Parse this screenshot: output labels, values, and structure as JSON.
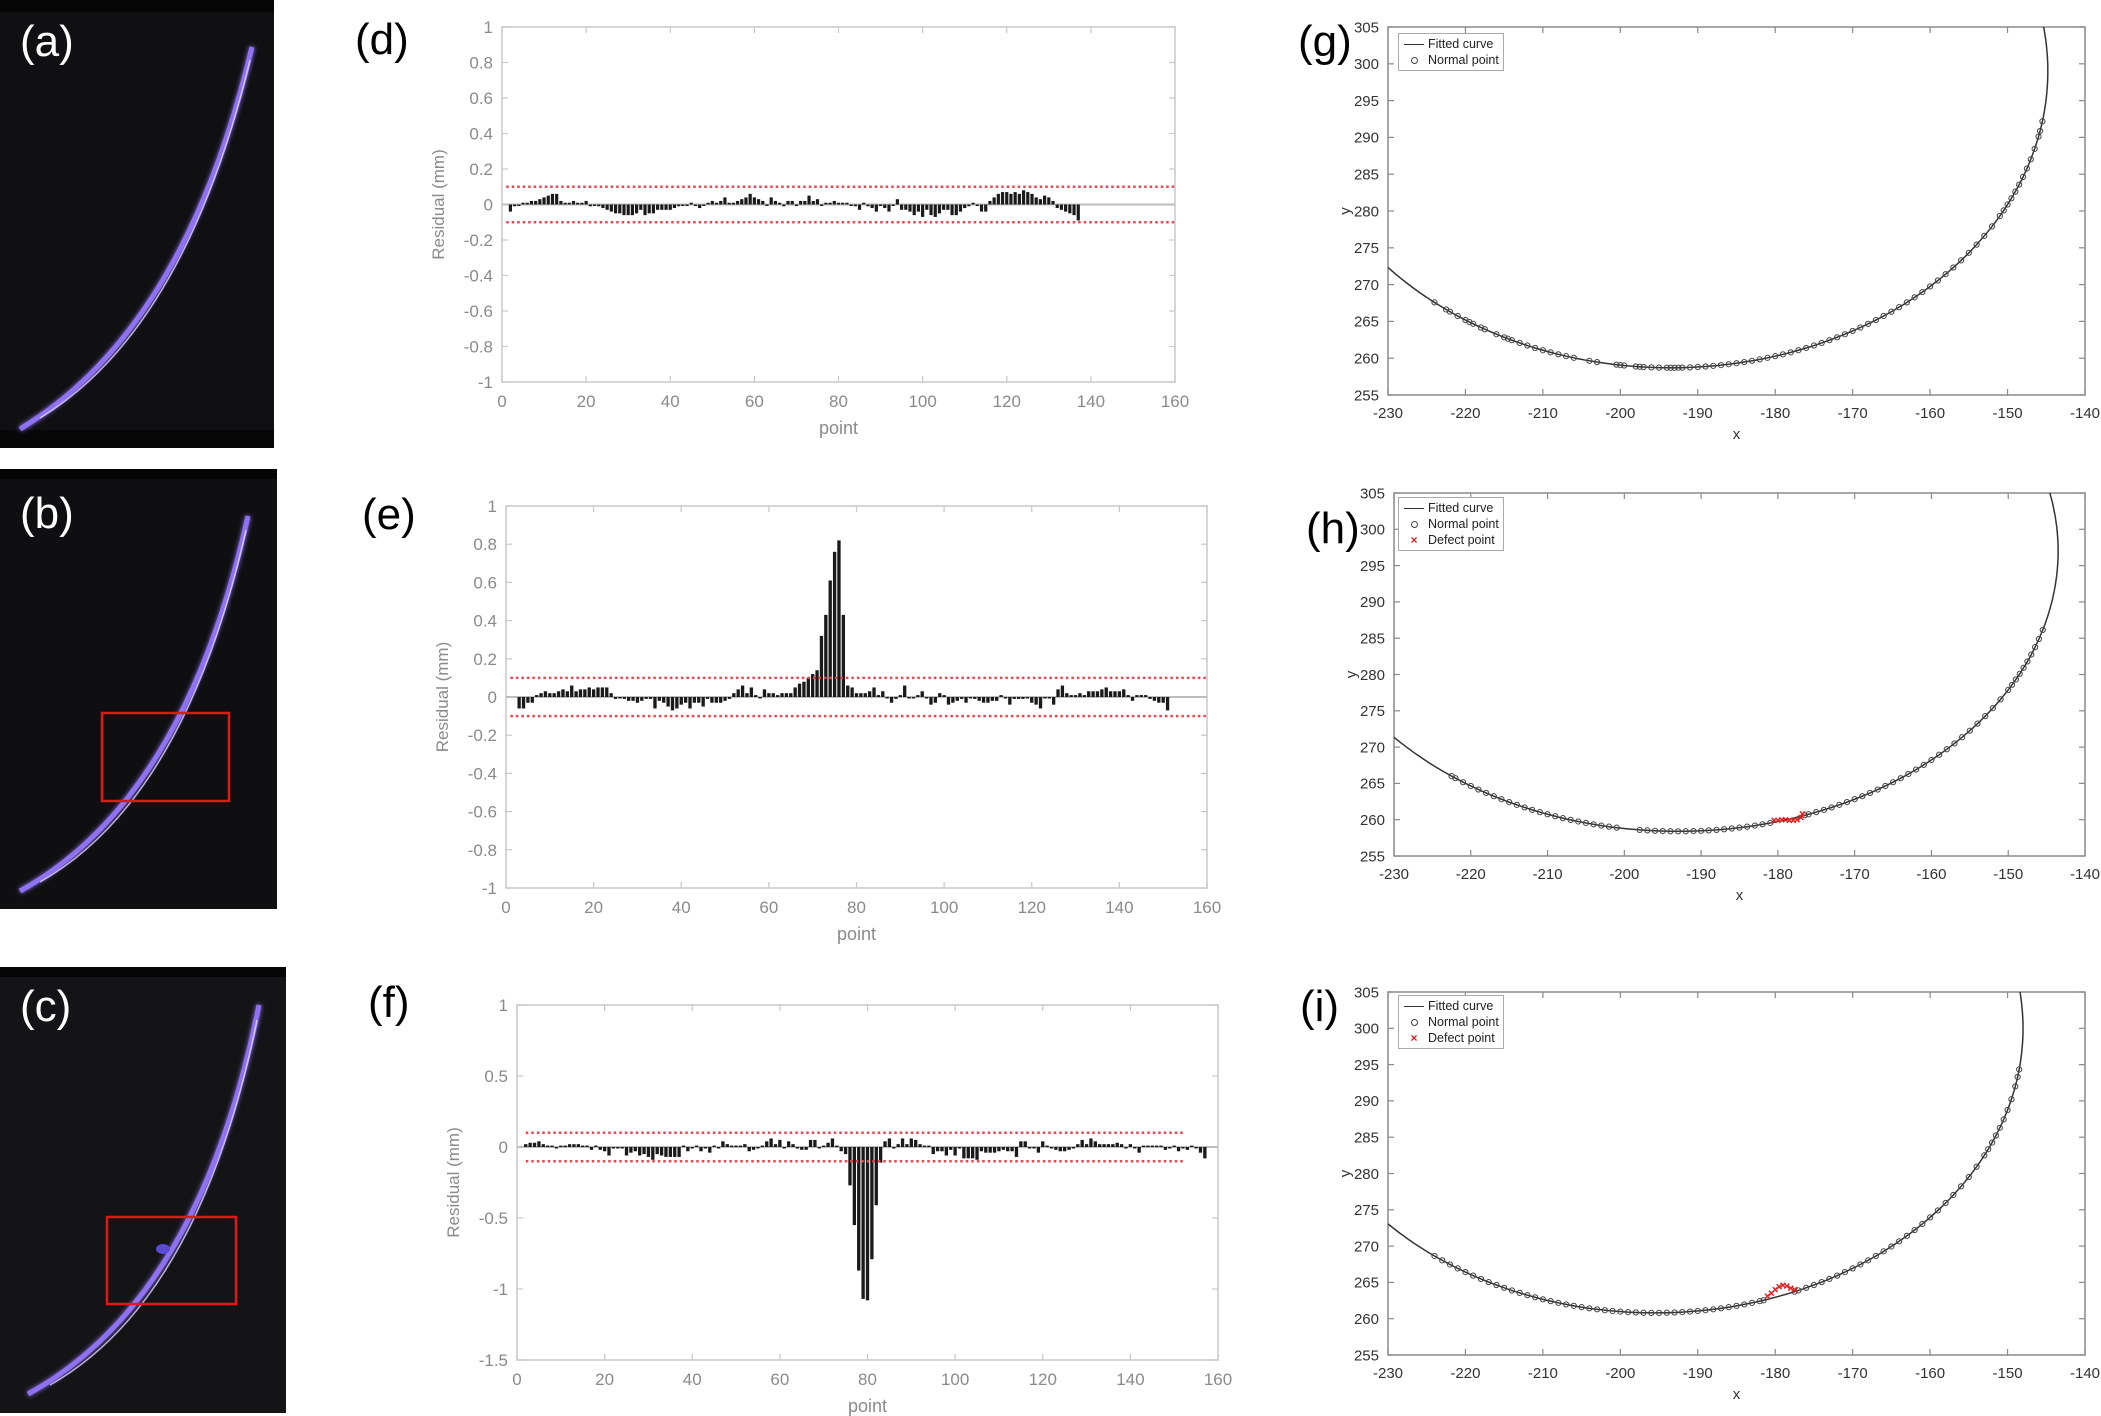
{
  "panels": {
    "a": {
      "label": "(a)"
    },
    "b": {
      "label": "(b)"
    },
    "c": {
      "label": "(c)"
    }
  },
  "colors": {
    "laser": "#9b7bff",
    "highlight_box": "#e01818",
    "threshold": "#e8474f",
    "defect": "#e02020"
  },
  "chart_data": [
    {
      "panel_label": "(d)",
      "type": "bar",
      "xlabel": "point",
      "ylabel": "Residual (mm)",
      "xlim": [
        0,
        160
      ],
      "ylim": [
        -1,
        1
      ],
      "xticks": [
        0,
        20,
        40,
        60,
        80,
        100,
        120,
        140,
        160
      ],
      "yticks": [
        1,
        0.8,
        0.6,
        0.4,
        0.2,
        0,
        -0.2,
        -0.4,
        -0.6,
        -0.8,
        -1
      ],
      "threshold": [
        0.1,
        -0.1
      ],
      "threshold_xrange": [
        1,
        160
      ],
      "x_start": 2,
      "values": [
        -0.04,
        -0.01,
        0.0,
        0.01,
        0.01,
        0.02,
        0.02,
        0.03,
        0.04,
        0.05,
        0.06,
        0.06,
        0.02,
        0.01,
        0.01,
        0.02,
        0.01,
        0.01,
        0.02,
        -0.01,
        0.0,
        -0.01,
        -0.02,
        -0.03,
        -0.04,
        -0.05,
        -0.05,
        -0.06,
        -0.06,
        -0.06,
        -0.05,
        -0.03,
        -0.06,
        -0.05,
        -0.05,
        -0.03,
        -0.03,
        -0.03,
        -0.03,
        -0.02,
        -0.01,
        0.0,
        0.0,
        0.01,
        0.0,
        -0.02,
        0.0,
        0.01,
        0.02,
        0.01,
        0.02,
        0.04,
        0.01,
        0.01,
        0.02,
        0.03,
        0.04,
        0.06,
        0.04,
        0.03,
        0.02,
        0.0,
        0.04,
        0.02,
        0.01,
        -0.01,
        0.02,
        0.02,
        0.0,
        0.02,
        0.02,
        0.05,
        0.02,
        0.03,
        0.0,
        0.01,
        0.01,
        0.02,
        0.01,
        0.01,
        0.01,
        0.0,
        -0.01,
        -0.03,
        0.01,
        -0.01,
        -0.02,
        -0.04,
        0.0,
        -0.02,
        -0.04,
        0.0,
        0.03,
        -0.03,
        -0.03,
        -0.04,
        -0.06,
        -0.04,
        -0.07,
        -0.03,
        -0.06,
        -0.07,
        -0.05,
        -0.03,
        -0.03,
        -0.06,
        -0.06,
        -0.04,
        -0.02,
        -0.01,
        0.01,
        0.0,
        -0.04,
        -0.04,
        0.02,
        0.04,
        0.06,
        0.07,
        0.07,
        0.06,
        0.07,
        0.06,
        0.08,
        0.07,
        0.06,
        0.04,
        0.03,
        0.05,
        0.04,
        0.02,
        -0.02,
        -0.03,
        -0.04,
        -0.05,
        -0.06,
        -0.09
      ]
    },
    {
      "panel_label": "(e)",
      "type": "bar",
      "xlabel": "point",
      "ylabel": "Residual (mm)",
      "xlim": [
        0,
        160
      ],
      "ylim": [
        -1,
        1
      ],
      "xticks": [
        0,
        20,
        40,
        60,
        80,
        100,
        120,
        140,
        160
      ],
      "yticks": [
        1,
        0.8,
        0.6,
        0.4,
        0.2,
        0,
        -0.2,
        -0.4,
        -0.6,
        -0.8,
        -1
      ],
      "threshold": [
        0.1,
        -0.1
      ],
      "threshold_xrange": [
        1,
        160
      ],
      "x_start": 3,
      "values": [
        -0.06,
        -0.06,
        -0.03,
        -0.03,
        0.01,
        0.02,
        0.03,
        0.02,
        0.02,
        0.03,
        0.04,
        0.03,
        0.06,
        0.03,
        0.04,
        0.04,
        0.05,
        0.04,
        0.05,
        0.05,
        0.05,
        0.02,
        -0.01,
        0.0,
        -0.01,
        -0.02,
        -0.02,
        -0.03,
        -0.02,
        -0.01,
        -0.01,
        -0.06,
        -0.02,
        -0.03,
        -0.05,
        -0.07,
        -0.06,
        -0.04,
        -0.03,
        -0.06,
        -0.03,
        -0.03,
        -0.05,
        -0.01,
        -0.03,
        -0.03,
        -0.03,
        -0.02,
        -0.01,
        0.02,
        0.04,
        0.06,
        0.02,
        0.05,
        0.01,
        0.0,
        0.04,
        0.02,
        0.02,
        0.01,
        0.02,
        0.02,
        0.02,
        0.05,
        0.07,
        0.08,
        0.1,
        0.12,
        0.14,
        0.32,
        0.43,
        0.61,
        0.76,
        0.82,
        0.43,
        0.06,
        0.05,
        0.02,
        0.02,
        0.02,
        0.03,
        0.05,
        0.01,
        0.03,
        0.0,
        -0.03,
        -0.01,
        0.01,
        0.06,
        0.0,
        0.0,
        0.01,
        0.03,
        0.0,
        -0.04,
        -0.03,
        0.02,
        0.01,
        -0.04,
        -0.03,
        -0.02,
        -0.01,
        -0.03,
        0.0,
        -0.01,
        -0.02,
        -0.03,
        -0.03,
        -0.02,
        -0.02,
        0.01,
        0.0,
        -0.04,
        -0.01,
        -0.01,
        -0.01,
        0.0,
        -0.03,
        -0.04,
        -0.06,
        0.0,
        0.0,
        -0.04,
        0.04,
        0.06,
        0.02,
        0.01,
        0.01,
        0.02,
        0.01,
        0.03,
        0.03,
        0.03,
        0.04,
        0.05,
        0.03,
        0.03,
        0.03,
        0.04,
        0.01,
        -0.02,
        0.01,
        0.01,
        0.01,
        -0.01,
        -0.02,
        -0.03,
        -0.03,
        -0.07
      ]
    },
    {
      "panel_label": "(f)",
      "type": "bar",
      "xlabel": "point",
      "ylabel": "Residual (mm)",
      "xlim": [
        0,
        160
      ],
      "ylim": [
        -1.5,
        1
      ],
      "xticks": [
        0,
        20,
        40,
        60,
        80,
        100,
        120,
        140,
        160
      ],
      "yticks": [
        1,
        0.5,
        0,
        -0.5,
        -1,
        -1.5
      ],
      "threshold": [
        0.1,
        -0.1
      ],
      "threshold_xrange": [
        2,
        152
      ],
      "x_start": 2,
      "values": [
        0.02,
        0.03,
        0.03,
        0.04,
        0.02,
        0.01,
        0.01,
        0.0,
        0.01,
        0.01,
        0.02,
        0.02,
        0.02,
        0.01,
        0.01,
        -0.02,
        0.01,
        -0.02,
        -0.03,
        -0.06,
        0.0,
        0.0,
        0.0,
        -0.06,
        -0.04,
        -0.03,
        -0.06,
        -0.05,
        -0.07,
        -0.09,
        -0.05,
        -0.06,
        -0.07,
        -0.07,
        -0.07,
        -0.07,
        0.01,
        -0.03,
        -0.01,
        0.01,
        -0.03,
        -0.01,
        -0.04,
        0.01,
        -0.01,
        0.04,
        0.02,
        0.01,
        0.01,
        0.01,
        0.02,
        -0.03,
        -0.02,
        0.0,
        0.01,
        0.04,
        0.06,
        0.02,
        0.05,
        0.0,
        0.04,
        0.02,
        0.0,
        -0.02,
        -0.02,
        0.05,
        0.05,
        0.0,
        0.01,
        0.03,
        0.06,
        0.01,
        -0.03,
        -0.05,
        -0.27,
        -0.55,
        -0.87,
        -1.07,
        -1.08,
        -0.79,
        -0.41,
        -0.11,
        0.04,
        0.06,
        0.0,
        0.02,
        0.06,
        0.02,
        0.06,
        0.05,
        0.02,
        0.01,
        0.01,
        -0.05,
        -0.03,
        -0.03,
        -0.06,
        -0.02,
        -0.06,
        0.0,
        -0.08,
        -0.08,
        -0.08,
        -0.09,
        -0.03,
        -0.04,
        -0.04,
        -0.04,
        -0.03,
        -0.02,
        -0.03,
        -0.03,
        -0.07,
        0.04,
        0.04,
        0.0,
        -0.01,
        -0.04,
        0.04,
        0.01,
        -0.01,
        -0.02,
        -0.03,
        -0.03,
        -0.02,
        0.0,
        0.02,
        0.05,
        0.02,
        0.06,
        0.04,
        0.02,
        0.02,
        0.02,
        0.02,
        0.03,
        0.02,
        0.0,
        0.02,
        -0.01,
        -0.04,
        0.01,
        0.01,
        0.01,
        0.01,
        0.01,
        -0.02,
        -0.01,
        0.01,
        -0.03,
        0.0,
        -0.02,
        0.01,
        0.0,
        -0.04,
        -0.08
      ]
    },
    {
      "panel_label": "(g)",
      "type": "scatter",
      "xlabel": "x",
      "ylabel": "y",
      "xlim": [
        -230,
        -140
      ],
      "ylim": [
        255,
        305
      ],
      "xticks": [
        -230,
        -220,
        -210,
        -200,
        -190,
        -180,
        -170,
        -160,
        -150,
        -140
      ],
      "yticks": [
        305,
        300,
        295,
        290,
        285,
        280,
        275,
        270,
        265,
        260,
        255
      ],
      "legend": [
        "Fitted curve",
        "Normal point"
      ],
      "legend_position": "top-left",
      "fitted_curve": {
        "shape": "ellipse",
        "center": [
          -193.5,
          299
        ],
        "semi_axes": [
          48.7,
          40.3
        ]
      },
      "normal_points_x": [
        -224,
        -222.5,
        -222,
        -221,
        -220,
        -219.5,
        -219,
        -218,
        -217.5,
        -216,
        -215,
        -214.5,
        -214,
        -213,
        -212,
        -211,
        -210,
        -209,
        -208,
        -207,
        -206,
        -204,
        -203,
        -200.5,
        -200,
        -199.5,
        -198,
        -197.5,
        -197,
        -196,
        -195,
        -194,
        -193.5,
        -193,
        -192.5,
        -192,
        -191,
        -190,
        -189,
        -188,
        -187,
        -186,
        -185,
        -184,
        -183,
        -182,
        -181,
        -180,
        -179,
        -178,
        -177,
        -176,
        -175,
        -174,
        -173,
        -172,
        -171,
        -170,
        -169,
        -168,
        -167,
        -166,
        -165,
        -164,
        -163,
        -162,
        -161,
        -160,
        -159,
        -158,
        -157,
        -156,
        -155,
        -154,
        -153,
        -152,
        -151,
        -150.5,
        -150,
        -149.5,
        -149,
        -148.5,
        -148,
        -147.5,
        -147,
        -146.5,
        -146,
        -145.8,
        -145.5
      ],
      "defect_points": []
    },
    {
      "panel_label": "(h)",
      "type": "scatter",
      "xlabel": "x",
      "ylabel": "y",
      "xlim": [
        -230,
        -140
      ],
      "ylim": [
        255,
        305
      ],
      "xticks": [
        -230,
        -220,
        -210,
        -200,
        -190,
        -180,
        -170,
        -160,
        -150,
        -140
      ],
      "yticks": [
        305,
        300,
        295,
        290,
        285,
        280,
        275,
        270,
        265,
        260,
        255
      ],
      "legend": [
        "Fitted curve",
        "Normal point",
        "Defect point"
      ],
      "legend_position": "top-left",
      "fitted_curve": {
        "shape": "ellipse",
        "center": [
          -193,
          297
        ],
        "semi_axes": [
          49.5,
          38.6
        ]
      },
      "normal_points_x": [
        -222.5,
        -222,
        -221,
        -220,
        -219,
        -218,
        -217,
        -216,
        -215,
        -214,
        -213,
        -212,
        -211,
        -210,
        -209,
        -208,
        -207,
        -206,
        -205,
        -204,
        -203,
        -202,
        -201,
        -198,
        -197,
        -196,
        -195,
        -194,
        -193,
        -192,
        -191,
        -190,
        -189,
        -188,
        -187,
        -186,
        -185,
        -184,
        -183,
        -182,
        -181,
        -176.5,
        -176,
        -175,
        -174,
        -173,
        -172,
        -171,
        -170,
        -169,
        -168,
        -167,
        -166,
        -165,
        -164,
        -163,
        -162,
        -161,
        -160,
        -159,
        -158,
        -157,
        -156,
        -155,
        -154,
        -153,
        -152,
        -151,
        -150,
        -149.5,
        -149,
        -148.5,
        -148,
        -147.5,
        -147,
        -146.5,
        -146,
        -145.5
      ],
      "defect_points": [
        [
          -180.5,
          259.9
        ],
        [
          -180,
          259.9
        ],
        [
          -179.5,
          260
        ],
        [
          -179,
          260
        ],
        [
          -178.5,
          259.9
        ],
        [
          -178,
          259.9
        ],
        [
          -177.5,
          260
        ],
        [
          -177,
          260.3
        ],
        [
          -176.8,
          260.8
        ]
      ]
    },
    {
      "panel_label": "(i)",
      "type": "scatter",
      "xlabel": "x",
      "ylabel": "y",
      "xlim": [
        -230,
        -140
      ],
      "ylim": [
        255,
        305
      ],
      "xticks": [
        -230,
        -220,
        -210,
        -200,
        -190,
        -180,
        -170,
        -160,
        -150,
        -140
      ],
      "yticks": [
        305,
        300,
        295,
        290,
        285,
        280,
        275,
        270,
        265,
        260,
        255
      ],
      "legend": [
        "Fitted curve",
        "Normal point",
        "Defect point"
      ],
      "legend_position": "top-left",
      "fitted_curve": {
        "shape": "ellipse",
        "center": [
          -195.5,
          300
        ],
        "semi_axes": [
          47.5,
          39.2
        ]
      },
      "normal_points_x": [
        -224,
        -223,
        -222,
        -221,
        -220,
        -219,
        -218,
        -217,
        -216,
        -215,
        -214,
        -213,
        -212,
        -211,
        -210,
        -209,
        -208,
        -207,
        -206,
        -205,
        -204,
        -203,
        -202,
        -201,
        -200,
        -199,
        -198,
        -197,
        -196,
        -195,
        -194,
        -193,
        -192,
        -191,
        -190,
        -189,
        -188,
        -187,
        -186,
        -185,
        -184,
        -183,
        -182,
        -181.5,
        -177.5,
        -177,
        -176,
        -175,
        -174,
        -173,
        -172,
        -171,
        -170,
        -169,
        -168,
        -167,
        -166,
        -165,
        -164,
        -163,
        -162,
        -161,
        -160,
        -159,
        -158,
        -157,
        -156,
        -155,
        -154,
        -153,
        -152.5,
        -152,
        -151.5,
        -151,
        -150.5,
        -150,
        -149.5,
        -149,
        -148.7,
        -148.5
      ],
      "defect_points": [
        [
          -181,
          263.1
        ],
        [
          -180.5,
          263.5
        ],
        [
          -180,
          264
        ],
        [
          -179.5,
          264.4
        ],
        [
          -179,
          264.6
        ],
        [
          -178.5,
          264.5
        ],
        [
          -178,
          264.2
        ],
        [
          -177.5,
          264.0
        ]
      ]
    }
  ]
}
